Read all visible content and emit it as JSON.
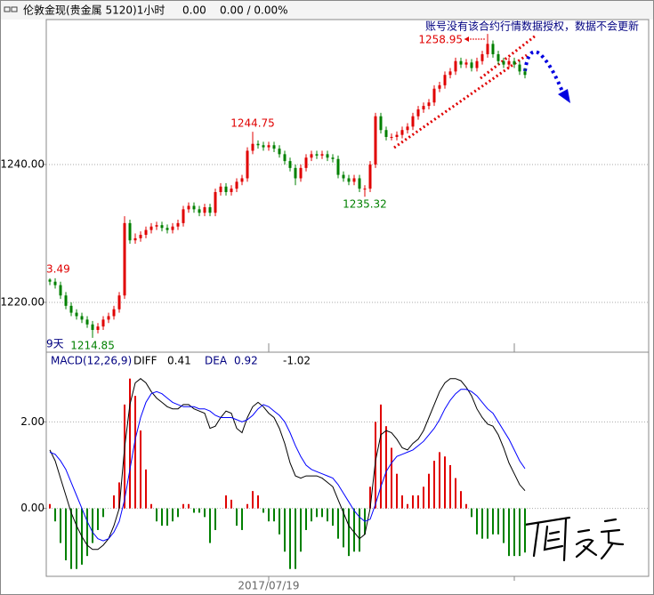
{
  "header": {
    "title": "伦敦金现(贵金属 5120)1小时",
    "price": "0.00",
    "change": "0.00 / 0.00%"
  },
  "notice": "账号没有该合约行情数据授权，数据不会更新",
  "annotations": [
    "3.49",
    "9天"
  ],
  "chart_data": [
    {
      "type": "candlestick",
      "up_color": "#e00000",
      "down_color": "#008000",
      "grid": true,
      "xlim": [
        -0.67,
        112.17
      ],
      "ylim": [
        1212.77,
        1261.03
      ],
      "yticks": [
        {
          "value": 1220,
          "label": "1220.00"
        },
        {
          "value": 1240,
          "label": "1240.00"
        }
      ],
      "candles": [
        [
          1223.3,
          1223.49,
          1222.5,
          1223.0
        ],
        [
          1223,
          1223.5,
          1222,
          1222.5
        ],
        [
          1222.5,
          1223,
          1220.5,
          1221
        ],
        [
          1221,
          1221.5,
          1219,
          1219.5
        ],
        [
          1219.5,
          1220,
          1218,
          1218.5
        ],
        [
          1218.5,
          1219,
          1217.5,
          1218
        ],
        [
          1218,
          1218.5,
          1217,
          1217.5
        ],
        [
          1217.5,
          1218,
          1216.3,
          1216.8
        ],
        [
          1216.8,
          1217.3,
          1214.85,
          1216
        ],
        [
          1216,
          1217,
          1215.5,
          1216.5
        ],
        [
          1216.5,
          1218,
          1216,
          1217.5
        ],
        [
          1217.5,
          1218.5,
          1217,
          1218
        ],
        [
          1218,
          1219.5,
          1217.5,
          1219
        ],
        [
          1219,
          1221.5,
          1218.5,
          1221
        ],
        [
          1221,
          1232.5,
          1220.5,
          1231.5
        ],
        [
          1231.5,
          1232,
          1228.5,
          1229
        ],
        [
          1229,
          1230,
          1228.5,
          1229.3
        ],
        [
          1229.3,
          1230.3,
          1228.8,
          1229.8
        ],
        [
          1229.8,
          1231,
          1229.3,
          1230.5
        ],
        [
          1230.5,
          1231.5,
          1230,
          1231
        ],
        [
          1231,
          1231.7,
          1230.5,
          1231.2
        ],
        [
          1231.2,
          1231.7,
          1230.3,
          1230.8
        ],
        [
          1230.8,
          1231.3,
          1230,
          1230.5
        ],
        [
          1230.5,
          1231.5,
          1230,
          1231
        ],
        [
          1231,
          1232,
          1230.5,
          1231.5
        ],
        [
          1231.5,
          1234,
          1231,
          1233.5
        ],
        [
          1233.5,
          1234.5,
          1233,
          1234
        ],
        [
          1234,
          1234.5,
          1233,
          1233.5
        ],
        [
          1233.5,
          1234,
          1232.5,
          1233
        ],
        [
          1233,
          1234.3,
          1232.5,
          1233.8
        ],
        [
          1233.8,
          1234.3,
          1232.5,
          1233
        ],
        [
          1233,
          1236.5,
          1232.5,
          1236
        ],
        [
          1236,
          1237.3,
          1235.5,
          1236.8
        ],
        [
          1236.8,
          1237.3,
          1235.5,
          1236
        ],
        [
          1236,
          1237,
          1235.5,
          1236.5
        ],
        [
          1236.5,
          1238,
          1236,
          1237.5
        ],
        [
          1237.5,
          1238.5,
          1237,
          1238
        ],
        [
          1238,
          1242.5,
          1237.5,
          1242
        ],
        [
          1242,
          1244.75,
          1241.5,
          1243
        ],
        [
          1243,
          1243.5,
          1242.3,
          1242.8
        ],
        [
          1242.8,
          1243.3,
          1242,
          1242.5
        ],
        [
          1242.5,
          1243.3,
          1242,
          1242.8
        ],
        [
          1242.8,
          1243.3,
          1241.8,
          1242.3
        ],
        [
          1242.3,
          1242.8,
          1241,
          1241.5
        ],
        [
          1241.5,
          1242,
          1240,
          1240.5
        ],
        [
          1240.5,
          1241,
          1239,
          1239.5
        ],
        [
          1239.5,
          1240,
          1237,
          1238
        ],
        [
          1238,
          1240,
          1237.5,
          1239.5
        ],
        [
          1239.5,
          1241.5,
          1239,
          1241
        ],
        [
          1241,
          1242,
          1240.5,
          1241.5
        ],
        [
          1241.5,
          1242,
          1240.8,
          1241.3
        ],
        [
          1241.3,
          1242,
          1240.8,
          1241.5
        ],
        [
          1241.5,
          1242,
          1240.5,
          1241
        ],
        [
          1241,
          1241.5,
          1240.3,
          1240.8
        ],
        [
          1240.8,
          1241.3,
          1238,
          1238.5
        ],
        [
          1238.5,
          1239,
          1237.5,
          1238
        ],
        [
          1238,
          1238.5,
          1237,
          1237.5
        ],
        [
          1237.5,
          1238.5,
          1237,
          1238
        ],
        [
          1238,
          1238.5,
          1236,
          1236.5
        ],
        [
          1236.5,
          1237,
          1235.32,
          1236.5
        ],
        [
          1236.5,
          1240.5,
          1236,
          1240
        ],
        [
          1240,
          1247.5,
          1239.5,
          1247
        ],
        [
          1247,
          1247.5,
          1244.5,
          1245
        ],
        [
          1245,
          1245.5,
          1243.5,
          1244
        ],
        [
          1244,
          1244.5,
          1243.5,
          1244
        ],
        [
          1244,
          1244.8,
          1243.5,
          1244.3
        ],
        [
          1244.3,
          1245.5,
          1243.8,
          1245
        ],
        [
          1245,
          1246,
          1244.5,
          1245.5
        ],
        [
          1245.5,
          1247.5,
          1245,
          1247
        ],
        [
          1247,
          1248.5,
          1246.5,
          1248
        ],
        [
          1248,
          1249,
          1247.5,
          1248.5
        ],
        [
          1248.5,
          1249.5,
          1248,
          1249
        ],
        [
          1249,
          1251.5,
          1248.5,
          1251
        ],
        [
          1251,
          1252,
          1250.5,
          1251.5
        ],
        [
          1251.5,
          1253.5,
          1251,
          1253
        ],
        [
          1253,
          1254,
          1252.5,
          1253.5
        ],
        [
          1253.5,
          1255.5,
          1253,
          1255
        ],
        [
          1255,
          1255.5,
          1254,
          1254.5
        ],
        [
          1254.5,
          1255.3,
          1254,
          1254.8
        ],
        [
          1254.8,
          1255.3,
          1253.5,
          1254
        ],
        [
          1254,
          1255.5,
          1253.5,
          1255
        ],
        [
          1255,
          1256.5,
          1254.5,
          1256
        ],
        [
          1256,
          1258.95,
          1255.5,
          1257.5
        ],
        [
          1257.5,
          1258,
          1255.5,
          1256
        ],
        [
          1256,
          1256.5,
          1254.5,
          1255
        ],
        [
          1255,
          1255.5,
          1254,
          1254.5
        ],
        [
          1254.5,
          1255.5,
          1254,
          1255
        ],
        [
          1255,
          1255.5,
          1254,
          1254.5
        ],
        [
          1254.5,
          1255,
          1253,
          1253.5
        ],
        [
          1253.5,
          1254,
          1252.5,
          1253
        ]
      ]
    },
    {
      "type": "macd",
      "title": "MACD(12,26,9)",
      "grid": true,
      "xlim": [
        -0.67,
        112.17
      ],
      "ylim": [
        -1.57,
        3.61
      ],
      "yticks": [
        {
          "value": 0,
          "label": "0.00"
        },
        {
          "value": 2,
          "label": "2.00"
        }
      ],
      "xticks": [
        {
          "value": 41,
          "label": "2017/07/19"
        },
        {
          "value": 87,
          "label": null
        }
      ],
      "series": [
        {
          "name": "DIFF",
          "color": "#000000",
          "values": [
            1.35,
            1.1,
            0.7,
            0.3,
            -0.1,
            -0.4,
            -0.65,
            -0.85,
            -0.95,
            -0.95,
            -0.85,
            -0.7,
            -0.4,
            0.0,
            1.4,
            2.4,
            2.9,
            3.0,
            2.9,
            2.7,
            2.55,
            2.45,
            2.35,
            2.3,
            2.3,
            2.4,
            2.4,
            2.3,
            2.25,
            2.2,
            1.85,
            1.9,
            2.1,
            2.25,
            2.2,
            1.85,
            1.75,
            2.1,
            2.35,
            2.45,
            2.35,
            2.2,
            2.1,
            1.85,
            1.5,
            1.05,
            0.75,
            0.7,
            0.75,
            0.75,
            0.75,
            0.7,
            0.6,
            0.5,
            0.2,
            -0.1,
            -0.4,
            -0.55,
            -0.7,
            -0.6,
            0.0,
            1.1,
            1.7,
            1.8,
            1.75,
            1.6,
            1.4,
            1.35,
            1.5,
            1.6,
            1.8,
            2.1,
            2.4,
            2.7,
            2.9,
            3.0,
            3.0,
            2.95,
            2.8,
            2.6,
            2.3,
            2.1,
            1.95,
            1.9,
            1.7,
            1.4,
            1.05,
            0.8,
            0.55,
            0.41
          ]
        },
        {
          "name": "DEA",
          "color": "#0000ff",
          "values": [
            1.3,
            1.25,
            1.1,
            0.9,
            0.6,
            0.3,
            0.0,
            -0.3,
            -0.55,
            -0.7,
            -0.75,
            -0.7,
            -0.55,
            -0.3,
            0.2,
            0.9,
            1.6,
            2.1,
            2.45,
            2.65,
            2.7,
            2.65,
            2.55,
            2.45,
            2.4,
            2.35,
            2.35,
            2.35,
            2.3,
            2.3,
            2.25,
            2.15,
            2.1,
            2.1,
            2.1,
            2.05,
            2.0,
            2.05,
            2.15,
            2.3,
            2.4,
            2.35,
            2.25,
            2.15,
            2.0,
            1.75,
            1.45,
            1.2,
            1.0,
            0.9,
            0.85,
            0.8,
            0.75,
            0.7,
            0.55,
            0.35,
            0.15,
            -0.05,
            -0.2,
            -0.3,
            -0.25,
            0.1,
            0.5,
            0.85,
            1.05,
            1.2,
            1.25,
            1.3,
            1.35,
            1.45,
            1.55,
            1.7,
            1.85,
            2.05,
            2.3,
            2.5,
            2.65,
            2.75,
            2.75,
            2.7,
            2.6,
            2.45,
            2.3,
            2.2,
            2.0,
            1.8,
            1.6,
            1.35,
            1.1,
            0.92
          ]
        }
      ],
      "histogram": {
        "up_color": "#e00000",
        "down_color": "#008000",
        "values": [
          0.1,
          -0.3,
          -0.8,
          -1.2,
          -1.4,
          -1.4,
          -1.3,
          -1.1,
          -0.8,
          -0.5,
          -0.2,
          0.0,
          0.3,
          0.6,
          2.4,
          3.0,
          2.6,
          1.8,
          0.9,
          0.1,
          -0.3,
          -0.4,
          -0.4,
          -0.3,
          -0.2,
          0.1,
          0.1,
          -0.1,
          -0.1,
          -0.2,
          -0.8,
          -0.5,
          0.0,
          0.3,
          0.2,
          -0.4,
          -0.5,
          0.1,
          0.4,
          0.3,
          -0.1,
          -0.3,
          -0.3,
          -0.6,
          -1.0,
          -1.4,
          -1.4,
          -1.0,
          -0.5,
          -0.3,
          -0.2,
          -0.2,
          -0.3,
          -0.4,
          -0.7,
          -0.9,
          -1.1,
          -1.0,
          -1.0,
          -0.6,
          0.5,
          2.0,
          2.4,
          1.9,
          1.4,
          0.8,
          0.3,
          0.1,
          0.3,
          0.3,
          0.5,
          0.8,
          1.1,
          1.3,
          1.2,
          1.0,
          0.7,
          0.4,
          0.1,
          -0.2,
          -0.6,
          -0.7,
          -0.7,
          -0.6,
          -0.6,
          -0.8,
          -1.1,
          -1.1,
          -1.1,
          -1.02
        ]
      }
    }
  ]
}
